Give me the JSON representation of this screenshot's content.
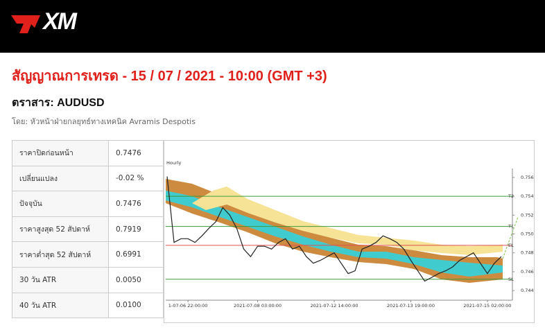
{
  "header": {
    "logo": "XM"
  },
  "title": "สัญญาณการเทรด - 15 / 07 / 2021 - 10:00 (GMT +3)",
  "instrument": "ตราสาร: AUDUSD",
  "byline": "โดย: หัวหน้าฝ่ายกลยุทธ์ทางเทคนิค Avramis Despotis",
  "table": {
    "rows": [
      [
        "ราคาปิดก่อนหน้า",
        "0.7476"
      ],
      [
        "เปลี่ยนแปลง",
        "-0.02 %"
      ],
      [
        "ปัจจุบัน",
        "0.7476"
      ],
      [
        "ราคาสูงสุด 52 สัปดาห์",
        "0.7919"
      ],
      [
        "ราคาต่ำสุด 52 สัปดาห์",
        "0.6991"
      ],
      [
        "30 วัน ATR",
        "0.0050"
      ],
      [
        "40 วัน ATR",
        "0.0100"
      ]
    ]
  },
  "chart_data": {
    "type": "line",
    "title": "Hourly",
    "x": [
      null,
      null,
      null,
      "1-07-06 22:00:00",
      null,
      null,
      null,
      null,
      null,
      null,
      null,
      null,
      null,
      "2021-07-08 03:00:00",
      null,
      null,
      null,
      null,
      null,
      null,
      null,
      null,
      null,
      null,
      "2021-07-12 14:00:00",
      null,
      null,
      null,
      null,
      null,
      null,
      null,
      null,
      null,
      null,
      "2021-07-13 19:00:00",
      null,
      null,
      null,
      null,
      null,
      null,
      null,
      null,
      null,
      null,
      "2021-07-15 02:00:00",
      null,
      null
    ],
    "series": [
      {
        "name": "AUDUSD",
        "color": "#222222",
        "values": [
          0.7561,
          0.7491,
          0.7495,
          0.7495,
          0.7491,
          0.7498,
          0.7506,
          0.7513,
          0.7528,
          0.752,
          0.7506,
          0.7484,
          0.7476,
          0.7487,
          0.7487,
          0.7484,
          0.7491,
          0.7495,
          0.7484,
          0.7487,
          0.7476,
          0.7469,
          0.7472,
          0.7476,
          0.748,
          0.7469,
          0.7458,
          0.7461,
          0.7484,
          0.7487,
          0.7491,
          0.7498,
          0.7495,
          0.7491,
          0.7484,
          0.7472,
          0.7461,
          0.745,
          0.7454,
          0.7458,
          0.7461,
          0.7465,
          0.7472,
          0.7476,
          0.748,
          0.7469,
          0.7458,
          0.7469,
          0.7476
        ]
      }
    ],
    "levels": [
      {
        "label": "T2",
        "value": 0.754,
        "color": "#3c9a3c"
      },
      {
        "label": "T1",
        "value": 0.7508,
        "color": "#3c9a3c"
      },
      {
        "label": "EL",
        "value": 0.7488,
        "color": "#e05050"
      },
      {
        "label": "SL",
        "value": 0.7452,
        "color": "#3c9a3c"
      }
    ],
    "ylim": [
      0.7432,
      0.7568
    ],
    "yticks": [
      {
        "value": 0.756,
        "label": "0.7560"
      },
      {
        "value": 0.754,
        "label": "0.7540"
      },
      {
        "value": 0.752,
        "label": "0.7520"
      },
      {
        "value": 0.75,
        "label": "0.7500"
      },
      {
        "value": 0.748,
        "label": "0.7480"
      },
      {
        "value": 0.746,
        "label": "0.7460"
      },
      {
        "value": 0.744,
        "label": "0.7440"
      }
    ]
  }
}
